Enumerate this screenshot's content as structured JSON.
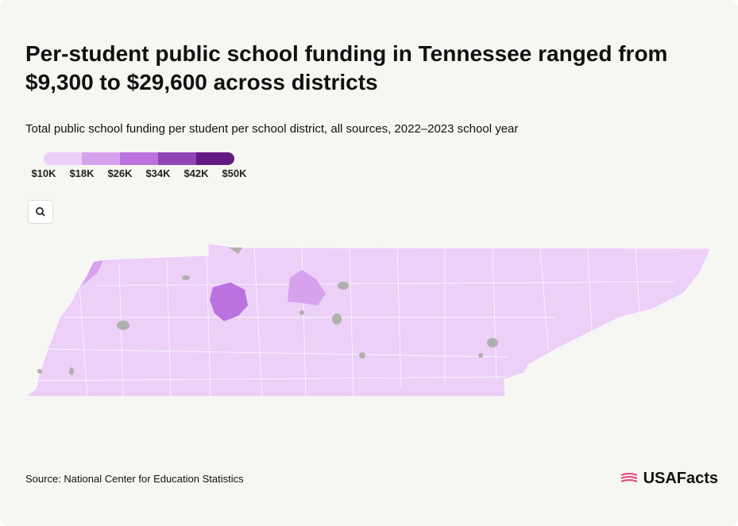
{
  "header": {
    "title": "Per-student public school funding in Tennessee ranged from $9,300 to $29,600 across districts",
    "subtitle": "Total public school funding per student per school district, all sources, 2022–2023 school year"
  },
  "legend": {
    "labels": [
      "$10K",
      "$18K",
      "$26K",
      "$34K",
      "$42K",
      "$50K"
    ],
    "colors": [
      "#ecd0f8",
      "#d6a2ee",
      "#bb72df",
      "#8f45b6",
      "#631b84"
    ]
  },
  "footer": {
    "source": "Source: National Center for Education Statistics",
    "logo": "USAFacts"
  }
}
